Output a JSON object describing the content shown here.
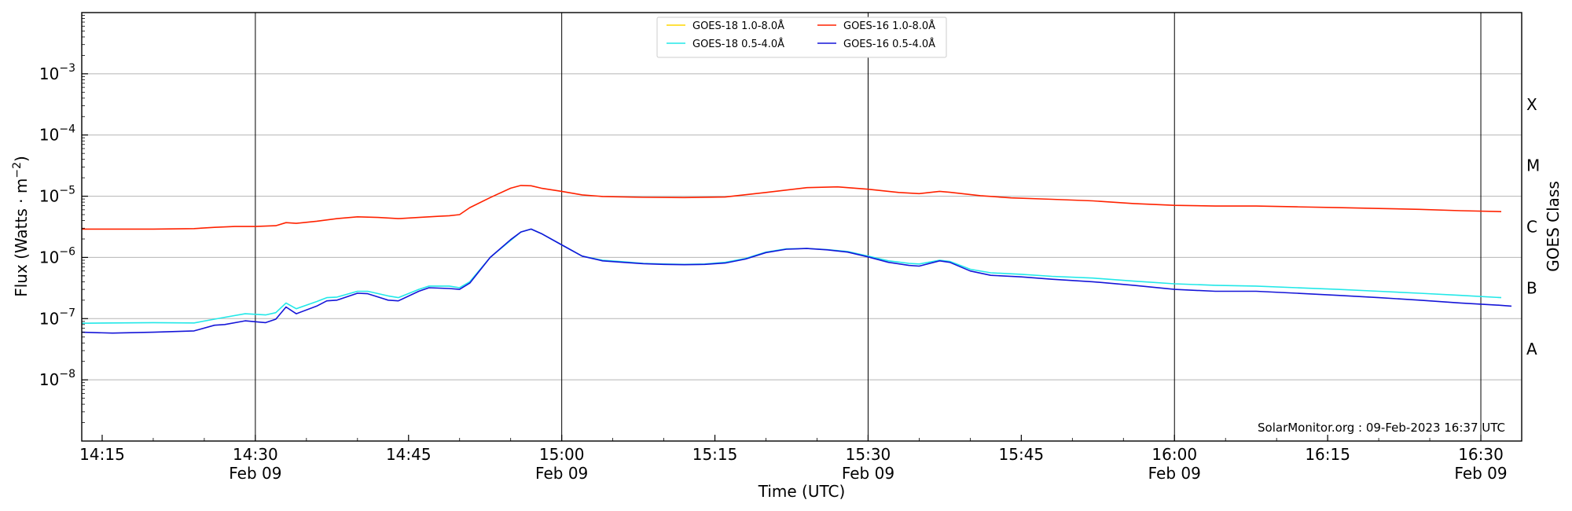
{
  "chart_data": {
    "type": "line",
    "xlabel": "Time (UTC)",
    "ylabel": "Flux (Watts · m",
    "ylabel_superscript": "−2",
    "ylabel_suffix": ")",
    "y2label": "GOES Class",
    "yscale": "log",
    "xlim": [
      "14:13",
      "16:34"
    ],
    "ylim": [
      1e-09,
      0.01
    ],
    "x_ticks": [
      {
        "t": "14:15",
        "label": "14:15",
        "sub": ""
      },
      {
        "t": "14:30",
        "label": "14:30",
        "sub": "Feb 09"
      },
      {
        "t": "14:45",
        "label": "14:45",
        "sub": ""
      },
      {
        "t": "15:00",
        "label": "15:00",
        "sub": "Feb 09"
      },
      {
        "t": "15:15",
        "label": "15:15",
        "sub": ""
      },
      {
        "t": "15:30",
        "label": "15:30",
        "sub": "Feb 09"
      },
      {
        "t": "15:45",
        "label": "15:45",
        "sub": ""
      },
      {
        "t": "16:00",
        "label": "16:00",
        "sub": "Feb 09"
      },
      {
        "t": "16:15",
        "label": "16:15",
        "sub": ""
      },
      {
        "t": "16:30",
        "label": "16:30",
        "sub": "Feb 09"
      }
    ],
    "y_ticks": [
      {
        "exp": -8,
        "label": "10",
        "sup": "−8"
      },
      {
        "exp": -7,
        "label": "10",
        "sup": "−7"
      },
      {
        "exp": -6,
        "label": "10",
        "sup": "−6"
      },
      {
        "exp": -5,
        "label": "10",
        "sup": "−5"
      },
      {
        "exp": -4,
        "label": "10",
        "sup": "−4"
      },
      {
        "exp": -3,
        "label": "10",
        "sup": "−3"
      }
    ],
    "goes_classes": [
      {
        "label": "A",
        "exp": -7.5
      },
      {
        "label": "B",
        "exp": -6.5
      },
      {
        "label": "C",
        "exp": -5.5
      },
      {
        "label": "M",
        "exp": -4.5
      },
      {
        "label": "X",
        "exp": -3.5
      }
    ],
    "grid": {
      "horizontal_at_decades": true,
      "vertical_at_half_hours": true
    },
    "legend": {
      "placement": "top-center",
      "columns": 2
    },
    "series": [
      {
        "name": "GOES-18 1.0-8.0Å",
        "color": "#ffd700",
        "x": [],
        "y": []
      },
      {
        "name": "GOES-18 0.5-4.0Å",
        "color": "#22e8e8",
        "x": [
          "14:13",
          "14:16",
          "14:20",
          "14:24",
          "14:26",
          "14:27",
          "14:29",
          "14:31",
          "14:32",
          "14:33",
          "14:34",
          "14:36",
          "14:37",
          "14:38",
          "14:40",
          "14:41",
          "14:43",
          "14:44",
          "14:46",
          "14:47",
          "14:49",
          "14:50",
          "14:51",
          "14:53",
          "14:55",
          "14:56",
          "14:57",
          "14:58",
          "15:00",
          "15:02",
          "15:04",
          "15:06",
          "15:08",
          "15:10",
          "15:12",
          "15:14",
          "15:16",
          "15:18",
          "15:20",
          "15:22",
          "15:24",
          "15:26",
          "15:28",
          "15:30",
          "15:32",
          "15:34",
          "15:35",
          "15:37",
          "15:38",
          "15:40",
          "15:42",
          "15:45",
          "15:48",
          "15:52",
          "15:56",
          "16:00",
          "16:04",
          "16:08",
          "16:12",
          "16:16",
          "16:20",
          "16:24",
          "16:28",
          "16:32"
        ],
        "y": [
          8.4e-08,
          8.5e-08,
          8.6e-08,
          8.5e-08,
          9.8e-08,
          1.05e-07,
          1.2e-07,
          1.15e-07,
          1.25e-07,
          1.8e-07,
          1.45e-07,
          1.9e-07,
          2.2e-07,
          2.25e-07,
          2.8e-07,
          2.8e-07,
          2.35e-07,
          2.2e-07,
          3e-07,
          3.4e-07,
          3.4e-07,
          3.2e-07,
          4e-07,
          1e-06,
          1.9e-06,
          2.6e-06,
          2.9e-06,
          2.45e-06,
          1.6e-06,
          1.05e-06,
          9e-07,
          8.5e-07,
          8e-07,
          7.8e-07,
          7.7e-07,
          7.8e-07,
          8.3e-07,
          9.6e-07,
          1.22e-06,
          1.38e-06,
          1.4e-06,
          1.34e-06,
          1.25e-06,
          1.05e-06,
          8.8e-07,
          8e-07,
          7.8e-07,
          9e-07,
          8.6e-07,
          6.4e-07,
          5.6e-07,
          5.3e-07,
          4.9e-07,
          4.6e-07,
          4.1e-07,
          3.7e-07,
          3.5e-07,
          3.4e-07,
          3.2e-07,
          3e-07,
          2.8e-07,
          2.6e-07,
          2.4e-07,
          2.2e-07
        ]
      },
      {
        "name": "GOES-16 1.0-8.0Å",
        "color": "#ff2200",
        "x": [
          "14:13",
          "14:16",
          "14:20",
          "14:24",
          "14:26",
          "14:28",
          "14:30",
          "14:32",
          "14:33",
          "14:34",
          "14:36",
          "14:38",
          "14:40",
          "14:42",
          "14:44",
          "14:46",
          "14:48",
          "14:49",
          "14:50",
          "14:51",
          "14:53",
          "14:55",
          "14:56",
          "14:57",
          "14:58",
          "15:00",
          "15:02",
          "15:04",
          "15:08",
          "15:12",
          "15:16",
          "15:20",
          "15:24",
          "15:27",
          "15:30",
          "15:33",
          "15:35",
          "15:37",
          "15:38",
          "15:41",
          "15:44",
          "15:48",
          "15:52",
          "15:56",
          "16:00",
          "16:04",
          "16:08",
          "16:12",
          "16:16",
          "16:20",
          "16:24",
          "16:28",
          "16:32"
        ],
        "y": [
          2.9e-06,
          2.9e-06,
          2.9e-06,
          2.95e-06,
          3.1e-06,
          3.2e-06,
          3.2e-06,
          3.3e-06,
          3.7e-06,
          3.6e-06,
          3.9e-06,
          4.3e-06,
          4.6e-06,
          4.5e-06,
          4.3e-06,
          4.5e-06,
          4.7e-06,
          4.8e-06,
          5e-06,
          6.5e-06,
          9.5e-06,
          1.35e-05,
          1.5e-05,
          1.48e-05,
          1.35e-05,
          1.2e-05,
          1.05e-05,
          9.9e-06,
          9.6e-06,
          9.5e-06,
          9.7e-06,
          1.15e-05,
          1.38e-05,
          1.42e-05,
          1.3e-05,
          1.15e-05,
          1.1e-05,
          1.2e-05,
          1.16e-05,
          1.02e-05,
          9.4e-06,
          8.9e-06,
          8.4e-06,
          7.6e-06,
          7.1e-06,
          6.9e-06,
          6.9e-06,
          6.7e-06,
          6.5e-06,
          6.3e-06,
          6.1e-06,
          5.8e-06,
          5.6e-06
        ]
      },
      {
        "name": "GOES-16 0.5-4.0Å",
        "color": "#1515d8",
        "x": [
          "14:13",
          "14:16",
          "14:20",
          "14:24",
          "14:26",
          "14:27",
          "14:29",
          "14:31",
          "14:32",
          "14:33",
          "14:34",
          "14:36",
          "14:37",
          "14:38",
          "14:40",
          "14:41",
          "14:43",
          "14:44",
          "14:46",
          "14:47",
          "14:49",
          "14:50",
          "14:51",
          "14:53",
          "14:55",
          "14:56",
          "14:57",
          "14:58",
          "15:00",
          "15:02",
          "15:04",
          "15:06",
          "15:08",
          "15:10",
          "15:12",
          "15:14",
          "15:16",
          "15:18",
          "15:20",
          "15:22",
          "15:24",
          "15:26",
          "15:28",
          "15:30",
          "15:32",
          "15:34",
          "15:35",
          "15:37",
          "15:38",
          "15:40",
          "15:42",
          "15:45",
          "15:48",
          "15:52",
          "15:56",
          "16:00",
          "16:04",
          "16:08",
          "16:12",
          "16:16",
          "16:20",
          "16:24",
          "16:28",
          "16:32",
          "16:33"
        ],
        "y": [
          6e-08,
          5.8e-08,
          6e-08,
          6.3e-08,
          7.8e-08,
          8e-08,
          9.2e-08,
          8.6e-08,
          9.8e-08,
          1.55e-07,
          1.2e-07,
          1.6e-07,
          1.95e-07,
          2e-07,
          2.6e-07,
          2.55e-07,
          2e-07,
          1.95e-07,
          2.8e-07,
          3.2e-07,
          3.1e-07,
          3e-07,
          3.8e-07,
          1e-06,
          1.95e-06,
          2.6e-06,
          2.9e-06,
          2.45e-06,
          1.6e-06,
          1.05e-06,
          8.8e-07,
          8.3e-07,
          7.9e-07,
          7.7e-07,
          7.6e-07,
          7.7e-07,
          8.1e-07,
          9.4e-07,
          1.2e-06,
          1.36e-06,
          1.4e-06,
          1.33e-06,
          1.22e-06,
          1.02e-06,
          8.3e-07,
          7.4e-07,
          7.2e-07,
          8.8e-07,
          8.3e-07,
          6e-07,
          5.1e-07,
          4.8e-07,
          4.4e-07,
          4e-07,
          3.5e-07,
          3e-07,
          2.8e-07,
          2.8e-07,
          2.6e-07,
          2.4e-07,
          2.2e-07,
          2e-07,
          1.8e-07,
          1.65e-07,
          1.6e-07
        ]
      }
    ],
    "footer": "SolarMonitor.org : 09-Feb-2023 16:37 UTC"
  }
}
